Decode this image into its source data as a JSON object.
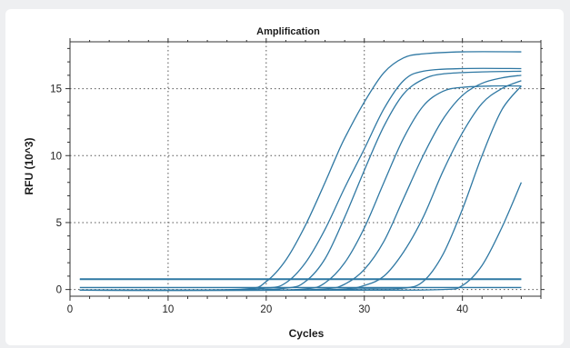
{
  "chart_data": {
    "type": "line",
    "title": "Amplification",
    "xlabel": "Cycles",
    "ylabel": "RFU (10^3)",
    "xlim": [
      0,
      48
    ],
    "ylim": [
      -0.5,
      18.5
    ],
    "xticks": [
      0,
      10,
      20,
      30,
      40
    ],
    "yticks": [
      0,
      5,
      10,
      15
    ],
    "grid": true,
    "line_color": "#2f78a3",
    "series": [
      {
        "values": [
          [
            1,
            0.15
          ],
          [
            46,
            0.15
          ]
        ]
      },
      {
        "values": [
          [
            1,
            0.75
          ],
          [
            46,
            0.75
          ]
        ]
      },
      {
        "values": [
          [
            1,
            0.8
          ],
          [
            46,
            0.8
          ]
        ]
      },
      {
        "values": [
          [
            1,
            -0.05
          ],
          [
            10,
            -0.05
          ],
          [
            18,
            0.05
          ],
          [
            20,
            0.6
          ],
          [
            22,
            2.2
          ],
          [
            24,
            4.8
          ],
          [
            26,
            8.0
          ],
          [
            27,
            9.7
          ],
          [
            28,
            11.3
          ],
          [
            30,
            14.0
          ],
          [
            32,
            16.2
          ],
          [
            34,
            17.3
          ],
          [
            36,
            17.6
          ],
          [
            40,
            17.75
          ],
          [
            46,
            17.75
          ]
        ]
      },
      {
        "values": [
          [
            1,
            -0.05
          ],
          [
            14,
            -0.05
          ],
          [
            20,
            0.1
          ],
          [
            22,
            0.5
          ],
          [
            24,
            2.0
          ],
          [
            26,
            4.5
          ],
          [
            28,
            7.6
          ],
          [
            30,
            10.5
          ],
          [
            32,
            13.5
          ],
          [
            34,
            15.6
          ],
          [
            36,
            16.3
          ],
          [
            40,
            16.5
          ],
          [
            46,
            16.5
          ]
        ]
      },
      {
        "values": [
          [
            1,
            -0.05
          ],
          [
            16,
            -0.05
          ],
          [
            22,
            0.1
          ],
          [
            24,
            0.6
          ],
          [
            26,
            2.3
          ],
          [
            28,
            5.4
          ],
          [
            30,
            8.9
          ],
          [
            32,
            12.2
          ],
          [
            34,
            14.6
          ],
          [
            36,
            15.7
          ],
          [
            38,
            16.1
          ],
          [
            42,
            16.25
          ],
          [
            46,
            16.3
          ]
        ]
      },
      {
        "values": [
          [
            1,
            -0.05
          ],
          [
            18,
            -0.05
          ],
          [
            24,
            0.05
          ],
          [
            26,
            0.5
          ],
          [
            28,
            2.0
          ],
          [
            30,
            4.6
          ],
          [
            32,
            8.0
          ],
          [
            34,
            11.3
          ],
          [
            36,
            13.7
          ],
          [
            38,
            14.8
          ],
          [
            40,
            15.1
          ],
          [
            43,
            15.2
          ],
          [
            46,
            15.2
          ]
        ]
      },
      {
        "values": [
          [
            1,
            -0.05
          ],
          [
            20,
            -0.05
          ],
          [
            26,
            0.05
          ],
          [
            28,
            0.4
          ],
          [
            30,
            1.5
          ],
          [
            32,
            3.6
          ],
          [
            34,
            6.8
          ],
          [
            36,
            10.0
          ],
          [
            38,
            12.7
          ],
          [
            40,
            14.5
          ],
          [
            42,
            15.4
          ],
          [
            44,
            15.8
          ],
          [
            46,
            16.0
          ]
        ]
      },
      {
        "values": [
          [
            1,
            -0.05
          ],
          [
            22,
            -0.05
          ],
          [
            28,
            0.05
          ],
          [
            30,
            0.3
          ],
          [
            32,
            1.0
          ],
          [
            34,
            2.8
          ],
          [
            36,
            5.4
          ],
          [
            38,
            8.8
          ],
          [
            40,
            11.7
          ],
          [
            42,
            13.9
          ],
          [
            44,
            15.0
          ],
          [
            46,
            15.6
          ]
        ]
      },
      {
        "values": [
          [
            1,
            -0.05
          ],
          [
            24,
            -0.05
          ],
          [
            30,
            0.05
          ],
          [
            34,
            0.1
          ],
          [
            36,
            0.6
          ],
          [
            38,
            2.6
          ],
          [
            40,
            6.0
          ],
          [
            42,
            10.0
          ],
          [
            44,
            13.4
          ],
          [
            46,
            15.2
          ]
        ]
      },
      {
        "values": [
          [
            1,
            -0.05
          ],
          [
            30,
            -0.05
          ],
          [
            38,
            0.0
          ],
          [
            40,
            0.3
          ],
          [
            42,
            1.8
          ],
          [
            44,
            4.6
          ],
          [
            46,
            8.0
          ]
        ]
      }
    ]
  }
}
